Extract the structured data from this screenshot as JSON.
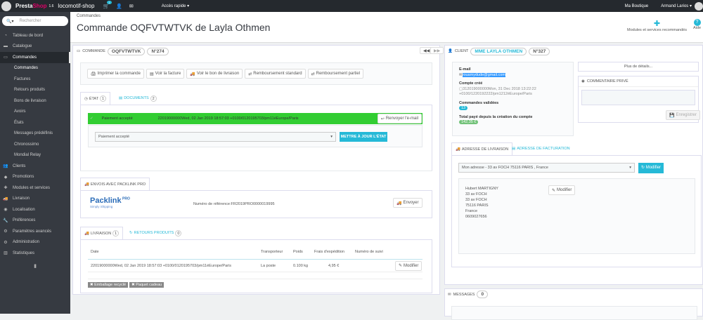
{
  "topbar": {
    "brand_a": "Presta",
    "brand_b": "Shop",
    "version": "1.6",
    "shop": "locomotif-shop",
    "cart_count": "1",
    "quick_access": "Accès rapide",
    "my_shop": "Ma Boutique",
    "user": "Armand Larios"
  },
  "sidebar": {
    "search_placeholder": "Rechercher",
    "items": [
      {
        "label": "Tableau de bord",
        "icon": "dashboard-icon"
      },
      {
        "label": "Catalogue",
        "icon": "book-icon"
      },
      {
        "label": "Commandes",
        "icon": "credit-card-icon",
        "active": true
      },
      {
        "label": "Clients",
        "icon": "users-icon"
      },
      {
        "label": "Promotions",
        "icon": "tag-icon"
      },
      {
        "label": "Modules et services",
        "icon": "puzzle-icon"
      },
      {
        "label": "Livraison",
        "icon": "truck-icon"
      },
      {
        "label": "Localisation",
        "icon": "globe-icon"
      },
      {
        "label": "Préférences",
        "icon": "wrench-icon"
      },
      {
        "label": "Paramètres avancés",
        "icon": "cogs-icon"
      },
      {
        "label": "Administration",
        "icon": "cog-icon"
      },
      {
        "label": "Statistiques",
        "icon": "chart-icon"
      }
    ],
    "subitems": [
      "Commandes",
      "Factures",
      "Retours produits",
      "Bons de livraison",
      "Avoirs",
      "États",
      "Messages prédéfinis",
      "Chronossimo",
      "Mondial Relay"
    ]
  },
  "header": {
    "breadcrumb": "Commandes",
    "title": "Commande OQFVTWTVK de Layla Othmen",
    "modules_label": "Modules et services recommandés",
    "help_label": "Aide"
  },
  "order": {
    "label": "COMMANDE",
    "reference": "OQFVTWTVK",
    "number": "N°274",
    "actions": [
      "Imprimer la commande",
      "Voir la facture",
      "Voir le bon de livraison",
      "Remboursement standard",
      "Remboursement partiel"
    ],
    "tabs": {
      "state": "ÉTAT",
      "state_count": "1",
      "documents": "DOCUMENTS",
      "documents_count": "2"
    },
    "status": {
      "name": "Paiement accepté",
      "date": "22019000000Wed, 02 Jan 2019 18:57:03 +0100/0120195703/pm11éEurope/Paris",
      "resend": "Renvoyer l'e-mail",
      "color": "#32cd32"
    },
    "state_select": "Paiement accepté",
    "update_state": "METTRE À JOUR L'ÉTAT"
  },
  "packlink": {
    "tab": "ENVOIS AVEC PACKLINK PRO",
    "logo": "Packlink PRO",
    "tagline": "Simply Shipping",
    "reference": "Numéro de référence:FR2019PRO0000019995",
    "send": "Envoyer"
  },
  "shipping": {
    "tab": "LIVRAISON",
    "tab_count": "1",
    "returns_tab": "RETOURS PRODUITS",
    "returns_count": "0",
    "columns": [
      "Date",
      "Transporteur",
      "Poids",
      "Frais d'expédition",
      "Numéro de suivi"
    ],
    "rows": [
      {
        "date": "22019000000Wed, 02 Jan 2019 18:57:03 +0100/0120195703/pm11éEurope/Paris",
        "carrier": "La poste",
        "weight": "0.100 kg",
        "cost": "4,95 €",
        "tracking": ""
      }
    ],
    "edit": "Modifier",
    "tags": [
      "Emballage recyclé",
      "Paquet cadeau"
    ]
  },
  "customer": {
    "label": "CLIENT",
    "name": "MME LAYLA OTHMEN",
    "number": "N°327",
    "email_label": "E-mail",
    "email": "rouamydude@gmail.com",
    "created_label": "Compte créé",
    "created": "312019000000Mon, 31 Dec 2018 13:22:22 +0100/1220192222/pm1212éEurope/Paris",
    "orders_label": "Commandes validées",
    "orders": "13",
    "total_label": "Total payé depuis la création du compte",
    "total": "142,35 €",
    "more": "Plus de détails...",
    "comment_label": "COMMENTAIRE PRIVÉ",
    "save": "Enregistrer"
  },
  "address": {
    "tab_delivery": "ADRESSE DE LIVRAISON",
    "tab_invoice": "ADRESSE DE FACTURATION",
    "select": "Mon adresse - 33 av FOCH 75116 PARIS , France",
    "modify": "Modifier",
    "lines": [
      "Hubert MARTIGNY",
      "33 av FOCH",
      "33 av FOCH",
      "75116 PARIS",
      "France",
      "0609027656"
    ],
    "edit": "Modifier"
  },
  "messages": {
    "label": "MESSAGES",
    "count": "0"
  }
}
